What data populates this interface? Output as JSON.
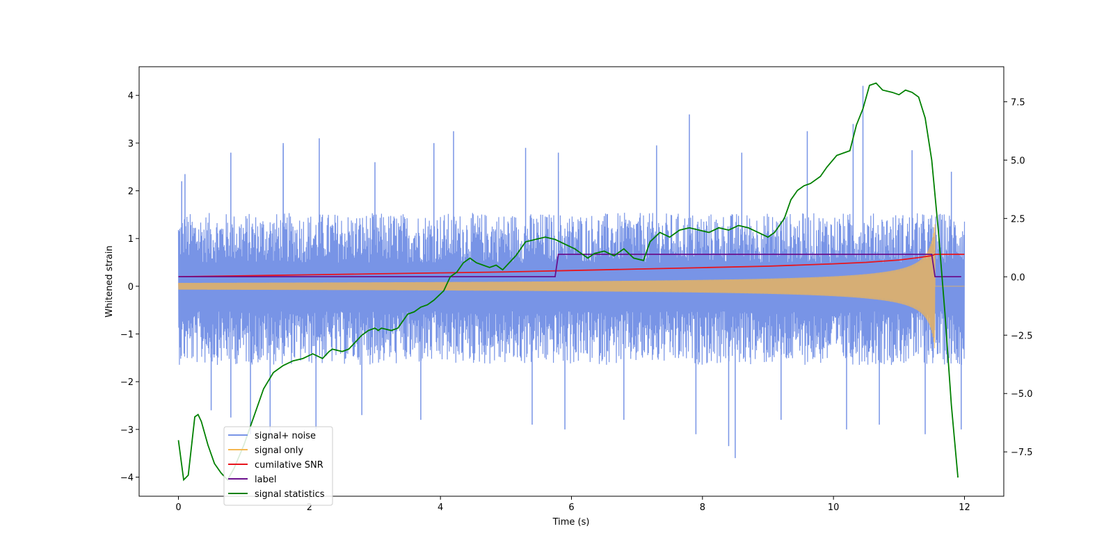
{
  "chart_data": {
    "type": "line",
    "title": "",
    "xlabel": "Time (s)",
    "ylabel": "Whitened strain",
    "y2label": "",
    "xlim": [
      -0.6,
      12.6
    ],
    "ylim": [
      -4.4,
      4.6
    ],
    "y2lim": [
      -9.4,
      9.0
    ],
    "x_ticks": [
      0,
      2,
      4,
      6,
      8,
      10,
      12
    ],
    "y_ticks": [
      -4,
      -3,
      -2,
      -1,
      0,
      1,
      2,
      3,
      4
    ],
    "y2_ticks": [
      -7.5,
      -5.0,
      -2.5,
      0.0,
      2.5,
      5.0,
      7.5
    ],
    "x_tick_labels": [
      "0",
      "2",
      "4",
      "6",
      "8",
      "10",
      "12"
    ],
    "y_tick_labels": [
      "−4",
      "−3",
      "−2",
      "−1",
      "0",
      "1",
      "2",
      "3",
      "4"
    ],
    "y2_tick_labels": [
      "−7.5",
      "−5.0",
      "−2.5",
      "0.0",
      "2.5",
      "5.0",
      "7.5"
    ],
    "grid": false,
    "legend_position": "lower-left",
    "series": [
      {
        "name": "signal+ noise",
        "color": "#7894e6",
        "axis": "left",
        "kind": "noise-band",
        "x_range": [
          0,
          12
        ],
        "typical_upper": 1.4,
        "typical_lower": -1.5,
        "spikes": [
          [
            0.05,
            2.2
          ],
          [
            0.1,
            2.35
          ],
          [
            0.8,
            2.8
          ],
          [
            1.6,
            2.95
          ],
          [
            1.6,
            3.0
          ],
          [
            2.15,
            3.1
          ],
          [
            3.0,
            2.6
          ],
          [
            3.9,
            3.0
          ],
          [
            4.2,
            3.25
          ],
          [
            5.3,
            2.9
          ],
          [
            5.8,
            2.8
          ],
          [
            7.3,
            2.95
          ],
          [
            7.8,
            3.6
          ],
          [
            8.6,
            2.8
          ],
          [
            9.6,
            3.25
          ],
          [
            10.3,
            3.4
          ],
          [
            10.45,
            4.2
          ],
          [
            11.2,
            2.85
          ],
          [
            11.8,
            2.4
          ],
          [
            0.5,
            -2.6
          ],
          [
            0.8,
            -2.75
          ],
          [
            1.1,
            -3.1
          ],
          [
            1.4,
            -3.2
          ],
          [
            2.1,
            -3.0
          ],
          [
            2.8,
            -2.7
          ],
          [
            3.7,
            -2.8
          ],
          [
            5.4,
            -2.9
          ],
          [
            5.9,
            -3.0
          ],
          [
            6.8,
            -2.8
          ],
          [
            7.9,
            -3.1
          ],
          [
            8.4,
            -3.35
          ],
          [
            8.5,
            -3.6
          ],
          [
            9.2,
            -2.8
          ],
          [
            10.2,
            -3.0
          ],
          [
            10.7,
            -2.9
          ],
          [
            11.4,
            -3.1
          ],
          [
            11.95,
            -3.0
          ]
        ]
      },
      {
        "name": "signal only",
        "color": "#f5b74f",
        "axis": "left",
        "kind": "chirp",
        "x_range": [
          0,
          11.55
        ],
        "amplitude_start": 0.07,
        "amplitude_end": 1.3,
        "after_merger": 0.0,
        "x_end": 12
      },
      {
        "name": "cumilative SNR",
        "color": "#e8141c",
        "axis": "left",
        "x": [
          0,
          1,
          2,
          3,
          4,
          5,
          6,
          7,
          8,
          9,
          10,
          10.5,
          11,
          11.3,
          11.5,
          11.55,
          12
        ],
        "y": [
          0.2,
          0.22,
          0.24,
          0.26,
          0.28,
          0.3,
          0.33,
          0.36,
          0.39,
          0.42,
          0.47,
          0.5,
          0.55,
          0.6,
          0.64,
          0.67,
          0.67
        ]
      },
      {
        "name": "label",
        "color": "#6a0f8c",
        "axis": "left",
        "x": [
          0,
          5.75,
          5.8,
          11.5,
          11.55,
          11.95
        ],
        "y": [
          0.2,
          0.2,
          0.67,
          0.67,
          0.2,
          0.2
        ]
      },
      {
        "name": "signal statistics",
        "color": "#008000",
        "axis": "right",
        "x": [
          0,
          0.08,
          0.15,
          0.25,
          0.3,
          0.35,
          0.45,
          0.55,
          0.65,
          0.75,
          0.85,
          1.0,
          1.15,
          1.3,
          1.45,
          1.6,
          1.75,
          1.9,
          2.05,
          2.2,
          2.3,
          2.35,
          2.5,
          2.6,
          2.7,
          2.8,
          2.9,
          3.0,
          3.05,
          3.1,
          3.25,
          3.35,
          3.5,
          3.6,
          3.7,
          3.8,
          3.9,
          4.05,
          4.15,
          4.25,
          4.35,
          4.45,
          4.55,
          4.65,
          4.75,
          4.85,
          4.95,
          5.05,
          5.15,
          5.3,
          5.45,
          5.6,
          5.75,
          5.9,
          6.05,
          6.15,
          6.25,
          6.35,
          6.5,
          6.65,
          6.8,
          6.95,
          7.1,
          7.2,
          7.35,
          7.5,
          7.65,
          7.8,
          7.95,
          8.1,
          8.25,
          8.4,
          8.55,
          8.7,
          8.85,
          9.0,
          9.1,
          9.25,
          9.35,
          9.45,
          9.55,
          9.65,
          9.8,
          9.9,
          10.05,
          10.15,
          10.25,
          10.35,
          10.45,
          10.55,
          10.65,
          10.75,
          10.9,
          11.0,
          11.1,
          11.2,
          11.3,
          11.4,
          11.5,
          11.6,
          11.7,
          11.8,
          11.9
        ],
        "y": [
          -7.0,
          -8.7,
          -8.5,
          -6.0,
          -5.9,
          -6.2,
          -7.2,
          -8.0,
          -8.4,
          -8.7,
          -8.2,
          -7.2,
          -6.0,
          -4.8,
          -4.1,
          -3.8,
          -3.6,
          -3.5,
          -3.3,
          -3.5,
          -3.2,
          -3.1,
          -3.2,
          -3.1,
          -2.8,
          -2.5,
          -2.3,
          -2.2,
          -2.3,
          -2.2,
          -2.3,
          -2.2,
          -1.6,
          -1.5,
          -1.3,
          -1.2,
          -1.0,
          -0.6,
          0.0,
          0.2,
          0.6,
          0.8,
          0.6,
          0.5,
          0.4,
          0.5,
          0.3,
          0.6,
          0.9,
          1.5,
          1.6,
          1.7,
          1.6,
          1.4,
          1.2,
          1.0,
          0.8,
          1.0,
          1.1,
          0.9,
          1.2,
          0.8,
          0.7,
          1.5,
          1.9,
          1.7,
          2.0,
          2.1,
          2.0,
          1.9,
          2.1,
          2.0,
          2.2,
          2.1,
          1.9,
          1.7,
          1.9,
          2.5,
          3.3,
          3.7,
          3.9,
          4.0,
          4.3,
          4.7,
          5.2,
          5.3,
          5.4,
          6.5,
          7.2,
          8.2,
          8.3,
          8.0,
          7.9,
          7.8,
          8.0,
          7.9,
          7.7,
          6.8,
          5.0,
          2.0,
          -1.5,
          -5.5,
          -8.6
        ]
      }
    ]
  }
}
